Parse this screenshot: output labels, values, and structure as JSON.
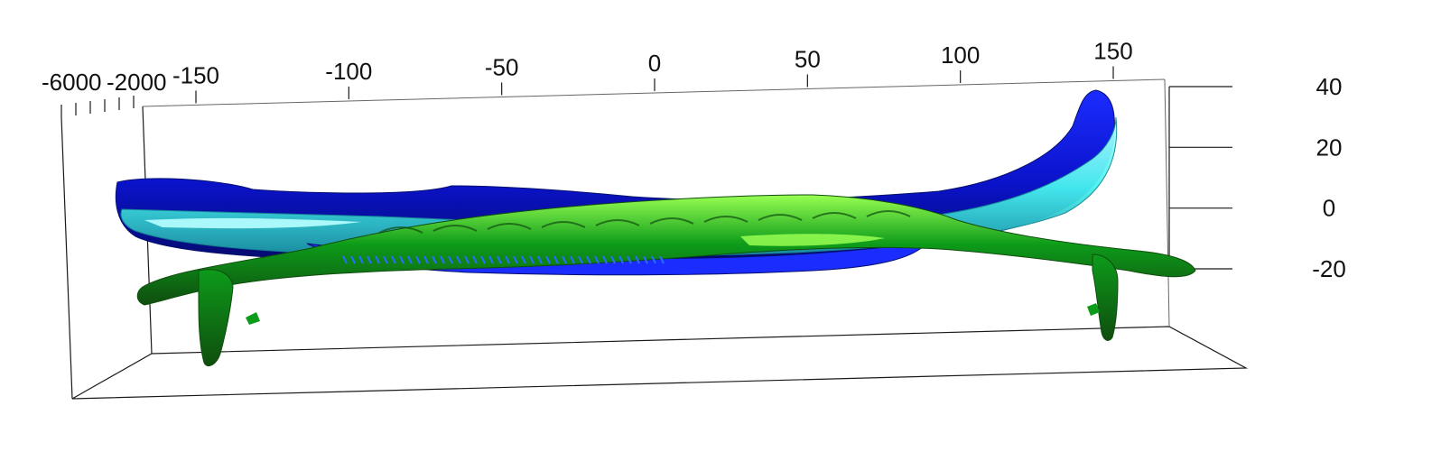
{
  "chart_data": {
    "type": "surface3d",
    "title": "",
    "xlabel": "",
    "ylabel": "",
    "zlabel": "",
    "xlim": [
      -150,
      150
    ],
    "zlim": [
      -20,
      40
    ],
    "x_ticks": [
      "-150",
      "-100",
      "-50",
      "0",
      "50",
      "100",
      "150"
    ],
    "z_ticks": [
      "40",
      "20",
      "0",
      "-20"
    ],
    "y_ticks_overlapping": [
      "-6000",
      "-2000"
    ],
    "colors": {
      "surface_dark_blue": "#0a12c8",
      "surface_blue": "#1b2cff",
      "surface_cyan": "#47f2f0",
      "surface_light_cyan": "#b8ffff",
      "surface_green": "#0d9b1a",
      "surface_dark_green": "#0f4d0e",
      "surface_lime": "#98ff52",
      "axis_line": "#1a1a1a",
      "bbox_line": "#666666",
      "background": "#ffffff"
    },
    "grid": false,
    "legend": "none"
  }
}
